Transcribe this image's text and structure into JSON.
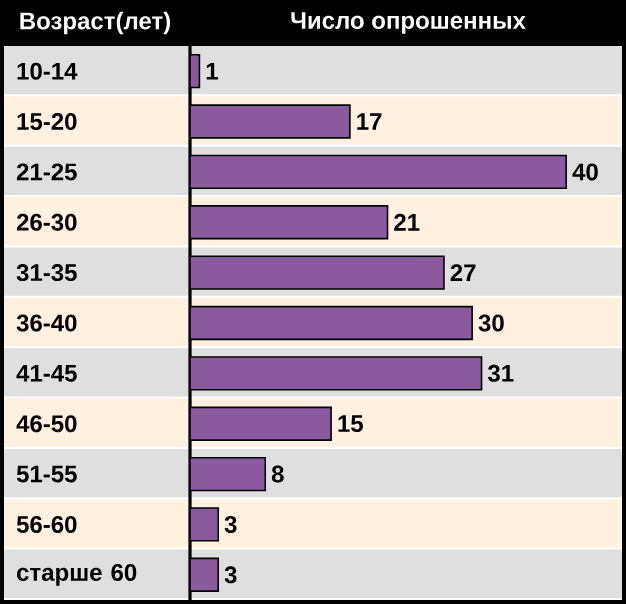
{
  "chart_data": {
    "type": "bar",
    "orientation": "horizontal",
    "xlabel": "Число опрошенных",
    "ylabel": "Возраст(лет)",
    "categories": [
      "10-14",
      "15-20",
      "21-25",
      "26-30",
      "31-35",
      "36-40",
      "41-45",
      "46-50",
      "51-55",
      "56-60",
      "старше 60"
    ],
    "values": [
      1,
      17,
      40,
      21,
      27,
      30,
      31,
      15,
      8,
      3,
      3
    ],
    "color": "#8b5a9e",
    "data_labels": true
  }
}
